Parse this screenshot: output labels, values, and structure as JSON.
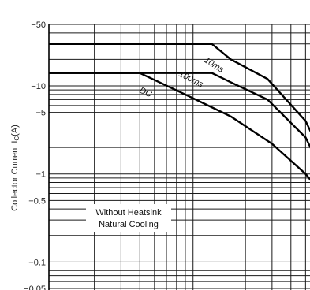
{
  "chart_data": {
    "type": "line",
    "title": "",
    "xlabel": "",
    "ylabel": "Collector Current I",
    "ylabel_subscript": "C",
    "ylabel_unit": "(A)",
    "y_scale": "log",
    "ylim": [
      0.05,
      60
    ],
    "y_ticks": [
      {
        "value": 50,
        "label": "−50"
      },
      {
        "value": 10,
        "label": "−10"
      },
      {
        "value": 5,
        "label": "−5"
      },
      {
        "value": 1,
        "label": "−1"
      },
      {
        "value": 0.5,
        "label": "−0.5"
      },
      {
        "value": 0.1,
        "label": "−0.1"
      },
      {
        "value": 0.05,
        "label": "−0.05"
      }
    ],
    "x_scale": "log",
    "xlim": [
      1,
      100
    ],
    "grid": true,
    "series": [
      {
        "name": "10ms",
        "x": [
          1,
          12,
          16,
          28,
          50,
          70,
          80,
          80
        ],
        "y": [
          30,
          30,
          20,
          12,
          4,
          1.2,
          0.45,
          0.05
        ]
      },
      {
        "name": "100ms",
        "x": [
          1,
          12,
          16,
          28,
          50,
          70,
          80,
          80
        ],
        "y": [
          14,
          14,
          11,
          7,
          2.6,
          0.8,
          0.28,
          0.05
        ]
      },
      {
        "name": "DC",
        "x": [
          1,
          4,
          8,
          16,
          30,
          50,
          70,
          80,
          80
        ],
        "y": [
          14,
          14,
          8,
          4.5,
          2.2,
          1.0,
          0.5,
          0.2,
          0.05
        ]
      }
    ],
    "annotation": {
      "lines": [
        "Without Heatsink",
        "Natural Cooling"
      ]
    }
  }
}
